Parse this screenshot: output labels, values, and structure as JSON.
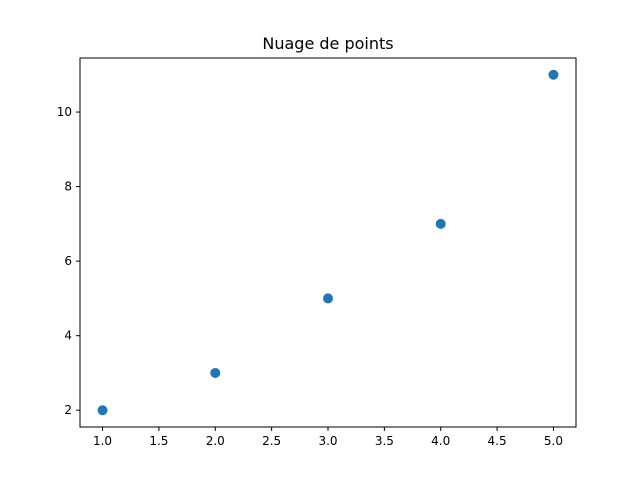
{
  "chart_data": {
    "type": "scatter",
    "title": "Nuage de points",
    "xlabel": "",
    "ylabel": "",
    "x": [
      1,
      2,
      3,
      4,
      5
    ],
    "y": [
      2,
      3,
      5,
      7,
      11
    ],
    "xlim": [
      0.8,
      5.2
    ],
    "ylim": [
      1.55,
      11.45
    ],
    "xticks": [
      1.0,
      1.5,
      2.0,
      2.5,
      3.0,
      3.5,
      4.0,
      4.5,
      5.0
    ],
    "xtick_labels": [
      "1.0",
      "1.5",
      "2.0",
      "2.5",
      "3.0",
      "3.5",
      "4.0",
      "4.5",
      "5.0"
    ],
    "yticks": [
      2,
      4,
      6,
      8,
      10
    ],
    "ytick_labels": [
      "2",
      "4",
      "6",
      "8",
      "10"
    ],
    "grid": false,
    "legend": "none",
    "marker_color": "#1f77b4"
  }
}
